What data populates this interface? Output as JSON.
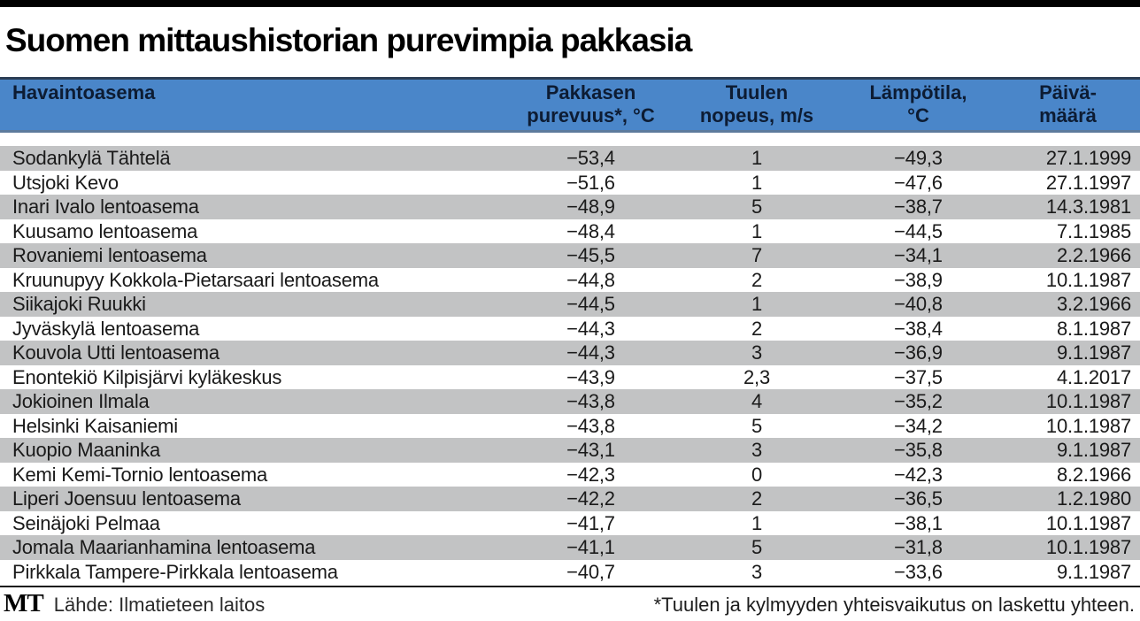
{
  "page": {
    "title": "Suomen mittaushistorian purevimpia pakkasia"
  },
  "colors": {
    "header_bg": "#4a86c9",
    "header_border_top": "#2c3e55",
    "header_border_bottom": "#5d7b9c",
    "row_alt_bg": "#c2c3c4",
    "top_bar": "#000000",
    "text": "#1a1a1a"
  },
  "table": {
    "headers": {
      "station": "Havaintoasema",
      "frost_line1": "Pakkasen",
      "frost_line2": "purevuus*, °C",
      "wind_line1": "Tuulen",
      "wind_line2": "nopeus, m/s",
      "temp_line1": "Lämpötila,",
      "temp_line2": "°C",
      "date_line1": "Päivä-",
      "date_line2": "määrä"
    }
  },
  "footer": {
    "logo": "MT",
    "source": "Lähde: Ilmatieteen laitos",
    "footnote": "*Tuulen ja kylmyyden yhteisvaikutus on laskettu yhteen."
  },
  "chart_data": {
    "type": "table",
    "title": "Suomen mittaushistorian purevimpia pakkasia",
    "columns": [
      "Havaintoasema",
      "Pakkasen purevuus*, °C",
      "Tuulen nopeus, m/s",
      "Lämpötila, °C",
      "Päivämäärä"
    ],
    "rows": [
      [
        "Sodankylä Tähtelä",
        "−53,4",
        "1",
        "−49,3",
        "27.1.1999"
      ],
      [
        "Utsjoki Kevo",
        "−51,6",
        "1",
        "−47,6",
        "27.1.1997"
      ],
      [
        "Inari Ivalo lentoasema",
        "−48,9",
        "5",
        "−38,7",
        "14.3.1981"
      ],
      [
        "Kuusamo lentoasema",
        "−48,4",
        "1",
        "−44,5",
        "7.1.1985"
      ],
      [
        "Rovaniemi lentoasema",
        "−45,5",
        "7",
        "−34,1",
        "2.2.1966"
      ],
      [
        "Kruunupyy Kokkola-Pietarsaari lentoasema",
        "−44,8",
        "2",
        "−38,9",
        "10.1.1987"
      ],
      [
        "Siikajoki Ruukki",
        "−44,5",
        "1",
        "−40,8",
        "3.2.1966"
      ],
      [
        "Jyväskylä lentoasema",
        "−44,3",
        "2",
        "−38,4",
        "8.1.1987"
      ],
      [
        "Kouvola Utti lentoasema",
        "−44,3",
        "3",
        "−36,9",
        "9.1.1987"
      ],
      [
        "Enontekiö Kilpisjärvi kyläkeskus",
        "−43,9",
        "2,3",
        "−37,5",
        "4.1.2017"
      ],
      [
        "Jokioinen Ilmala",
        "−43,8",
        "4",
        "−35,2",
        "10.1.1987"
      ],
      [
        "Helsinki Kaisaniemi",
        "−43,8",
        "5",
        "−34,2",
        "10.1.1987"
      ],
      [
        "Kuopio Maaninka",
        "−43,1",
        "3",
        "−35,8",
        "9.1.1987"
      ],
      [
        "Kemi Kemi-Tornio lentoasema",
        "−42,3",
        "0",
        "−42,3",
        "8.2.1966"
      ],
      [
        "Liperi Joensuu lentoasema",
        "−42,2",
        "2",
        "−36,5",
        "1.2.1980"
      ],
      [
        "Seinäjoki Pelmaa",
        "−41,7",
        "1",
        "−38,1",
        "10.1.1987"
      ],
      [
        "Jomala Maarianhamina lentoasema",
        "−41,1",
        "5",
        "−31,8",
        "10.1.1987"
      ],
      [
        "Pirkkala Tampere-Pirkkala lentoasema",
        "−40,7",
        "3",
        "−33,6",
        "9.1.1987"
      ]
    ]
  }
}
